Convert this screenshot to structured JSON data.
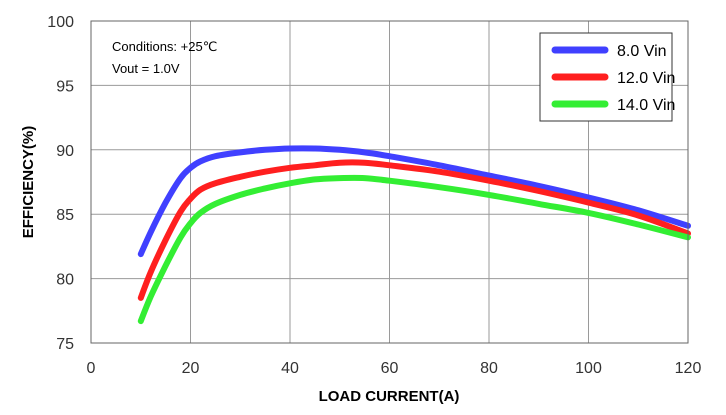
{
  "chart_data": {
    "type": "line",
    "xlabel": "LOAD CURRENT(A)",
    "ylabel": "EFFICIENCY(%)",
    "xlim": [
      0,
      120
    ],
    "ylim": [
      75,
      100
    ],
    "xticks": [
      "0",
      "20",
      "40",
      "60",
      "80",
      "100",
      "120"
    ],
    "yticks": [
      "75",
      "80",
      "85",
      "90",
      "95",
      "100"
    ],
    "grid": true,
    "legend_position": "top-right",
    "annotations": [
      "Conditions: +25℃",
      "Vout = 1.0V"
    ],
    "series": [
      {
        "name": "8.0 Vin",
        "color": "#4040ff",
        "x": [
          10,
          12,
          15,
          18,
          20,
          22,
          25,
          30,
          35,
          40,
          45,
          50,
          55,
          60,
          70,
          80,
          90,
          100,
          110,
          120
        ],
        "y": [
          81.9,
          83.6,
          85.9,
          87.8,
          88.6,
          89.1,
          89.5,
          89.8,
          90.0,
          90.1,
          90.1,
          90.0,
          89.8,
          89.5,
          88.8,
          88.0,
          87.2,
          86.3,
          85.3,
          84.1
        ]
      },
      {
        "name": "12.0 Vin",
        "color": "#ff1f1f",
        "x": [
          10,
          12,
          15,
          18,
          20,
          22,
          25,
          30,
          35,
          40,
          45,
          50,
          55,
          60,
          70,
          80,
          90,
          100,
          110,
          120
        ],
        "y": [
          78.5,
          80.5,
          83.0,
          85.2,
          86.2,
          86.9,
          87.4,
          87.9,
          88.3,
          88.6,
          88.8,
          89.0,
          89.0,
          88.8,
          88.3,
          87.6,
          86.8,
          85.9,
          84.9,
          83.5
        ]
      },
      {
        "name": "14.0 Vin",
        "color": "#33ee33",
        "x": [
          10,
          12,
          15,
          18,
          20,
          22,
          25,
          30,
          35,
          40,
          45,
          50,
          55,
          60,
          70,
          80,
          90,
          100,
          110,
          120
        ],
        "y": [
          76.7,
          78.6,
          81.0,
          83.2,
          84.3,
          85.1,
          85.8,
          86.5,
          87.0,
          87.4,
          87.7,
          87.8,
          87.8,
          87.6,
          87.1,
          86.5,
          85.8,
          85.1,
          84.2,
          83.2
        ]
      }
    ]
  }
}
